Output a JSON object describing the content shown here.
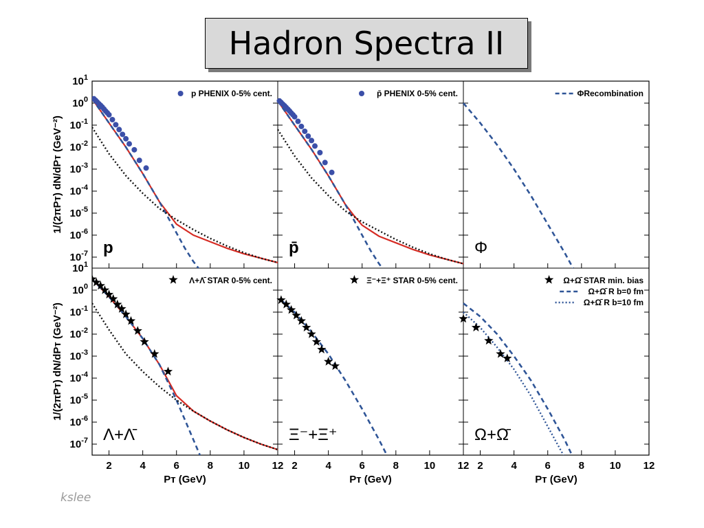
{
  "slide": {
    "title": "Hadron Spectra II",
    "footer": "kslee"
  },
  "colors": {
    "data_marker": "#3b4fa8",
    "dashed_curve": "#2f5597",
    "solid_curve": "#d62c24",
    "dotted_curve": "#111111"
  },
  "axes": {
    "ylabel": "1/(2πP_T) dN/dP_T (GeV^-2)",
    "xlabel": "P_T (GeV)",
    "x_ticks": [
      "2",
      "4",
      "6",
      "8",
      "10",
      "12"
    ],
    "y_ticks_top": [
      "10^1",
      "10^0",
      "10^-1",
      "10^-2",
      "10^-3",
      "10^-4",
      "10^-5",
      "10^-6",
      "10^-7"
    ],
    "y_ticks_bottom": [
      "10^1",
      "10^0",
      "10^-1",
      "10^-2",
      "10^-3",
      "10^-4",
      "10^-5",
      "10^-6",
      "10^-7"
    ]
  },
  "chart_data": [
    {
      "type": "scatter",
      "panel": "top-left",
      "panel_label": "p",
      "xlim": [
        1,
        12
      ],
      "ylim_log10": [
        -7.5,
        1
      ],
      "y_scale": "log",
      "legend": [
        {
          "label": "p PHENIX 0-5% cent.",
          "marker": "circle"
        }
      ],
      "series": [
        {
          "name": "p PHENIX 0-5% cent.",
          "style": "circle",
          "x": [
            1.1,
            1.2,
            1.3,
            1.4,
            1.5,
            1.6,
            1.7,
            1.8,
            1.9,
            2.0,
            2.2,
            2.4,
            2.6,
            2.8,
            3.0,
            3.2,
            3.5,
            3.8,
            4.2
          ],
          "y_log10": [
            0.2,
            0.13,
            0.05,
            -0.03,
            -0.1,
            -0.18,
            -0.27,
            -0.36,
            -0.44,
            -0.53,
            -0.75,
            -0.98,
            -1.2,
            -1.42,
            -1.62,
            -1.85,
            -2.12,
            -2.6,
            -2.95
          ]
        },
        {
          "name": "",
          "style": "solid-red",
          "x": [
            1,
            2,
            3,
            4,
            5,
            5.5,
            6,
            7,
            8,
            9,
            10,
            11,
            12
          ],
          "y_log10": [
            0.2,
            -0.9,
            -2.0,
            -3.2,
            -4.5,
            -5.0,
            -5.5,
            -6.0,
            -6.3,
            -6.6,
            -6.85,
            -7.05,
            -7.25
          ]
        },
        {
          "name": "",
          "style": "dashed-blue",
          "x": [
            1,
            2,
            3,
            4,
            5,
            5.5,
            6,
            6.5,
            7,
            7.5
          ],
          "y_log10": [
            0.2,
            -0.9,
            -2.0,
            -3.2,
            -4.5,
            -5.2,
            -5.9,
            -6.6,
            -7.2,
            -7.7
          ]
        },
        {
          "name": "",
          "style": "dotted-black",
          "x": [
            1,
            2,
            3,
            4,
            5,
            6,
            7,
            8,
            9,
            10,
            11,
            12
          ],
          "y_log10": [
            -1.1,
            -2.3,
            -3.3,
            -4.1,
            -4.8,
            -5.3,
            -5.75,
            -6.15,
            -6.5,
            -6.8,
            -7.05,
            -7.25
          ]
        }
      ]
    },
    {
      "type": "scatter",
      "panel": "top-center",
      "panel_label": "p̄",
      "xlim": [
        1,
        12
      ],
      "ylim_log10": [
        -7.5,
        1
      ],
      "y_scale": "log",
      "legend": [
        {
          "label": "p̄ PHENIX 0-5% cent.",
          "marker": "circle"
        }
      ],
      "series": [
        {
          "name": "p̄ PHENIX 0-5% cent.",
          "style": "circle",
          "x": [
            1.1,
            1.2,
            1.3,
            1.4,
            1.5,
            1.6,
            1.7,
            1.8,
            1.9,
            2.0,
            2.2,
            2.4,
            2.6,
            2.8,
            3.0,
            3.2,
            3.5,
            3.8,
            4.2
          ],
          "y_log10": [
            0.1,
            0.03,
            -0.05,
            -0.12,
            -0.2,
            -0.28,
            -0.36,
            -0.45,
            -0.53,
            -0.62,
            -0.83,
            -1.06,
            -1.28,
            -1.5,
            -1.7,
            -1.95,
            -2.25,
            -2.7,
            -3.15
          ]
        },
        {
          "name": "",
          "style": "solid-red",
          "x": [
            1,
            2,
            3,
            4,
            5,
            5.5,
            6,
            7,
            8,
            9,
            10,
            11,
            12
          ],
          "y_log10": [
            0.1,
            -1.0,
            -2.1,
            -3.3,
            -4.6,
            -5.1,
            -5.55,
            -6.05,
            -6.35,
            -6.65,
            -6.9,
            -7.1,
            -7.3
          ]
        },
        {
          "name": "",
          "style": "dashed-blue",
          "x": [
            1,
            2,
            3,
            4,
            5,
            5.5,
            6,
            6.5,
            7,
            7.5
          ],
          "y_log10": [
            0.1,
            -1.0,
            -2.1,
            -3.3,
            -4.6,
            -5.3,
            -6.0,
            -6.7,
            -7.3,
            -7.8
          ]
        },
        {
          "name": "",
          "style": "dotted-black",
          "x": [
            1,
            2,
            3,
            4,
            5,
            6,
            7,
            8,
            9,
            10,
            11,
            12
          ],
          "y_log10": [
            -1.2,
            -2.4,
            -3.4,
            -4.2,
            -4.9,
            -5.4,
            -5.8,
            -6.2,
            -6.55,
            -6.85,
            -7.1,
            -7.3
          ]
        }
      ]
    },
    {
      "type": "line",
      "panel": "top-right",
      "panel_label": "Φ",
      "xlim": [
        1,
        12
      ],
      "ylim_log10": [
        -7.5,
        1
      ],
      "y_scale": "log",
      "legend": [
        {
          "label": "ΦRecombination",
          "marker": "dashed"
        }
      ],
      "series": [
        {
          "name": "ΦRecombination",
          "style": "dashed-blue",
          "x": [
            1,
            2,
            3,
            4,
            5,
            6,
            7,
            7.5
          ],
          "y_log10": [
            0.0,
            -0.9,
            -1.9,
            -3.0,
            -4.2,
            -5.5,
            -6.8,
            -7.5
          ]
        }
      ]
    },
    {
      "type": "scatter",
      "panel": "bottom-left",
      "panel_label": "Λ+Λ̄",
      "xlim": [
        1,
        12
      ],
      "ylim_log10": [
        -7.5,
        1
      ],
      "y_scale": "log",
      "legend": [
        {
          "label": "Λ+Λ̄ STAR 0-5% cent.",
          "marker": "star"
        }
      ],
      "series": [
        {
          "name": "Λ+Λ̄ STAR 0-5% cent.",
          "style": "star",
          "x": [
            1.0,
            1.25,
            1.5,
            1.75,
            2.0,
            2.25,
            2.5,
            2.75,
            3.0,
            3.3,
            3.7,
            4.1,
            4.7,
            5.5
          ],
          "y_log10": [
            0.5,
            0.35,
            0.2,
            0.0,
            -0.2,
            -0.4,
            -0.65,
            -0.85,
            -1.1,
            -1.4,
            -1.85,
            -2.35,
            -2.9,
            -3.7
          ]
        },
        {
          "name": "",
          "style": "solid-red",
          "x": [
            1,
            2,
            3,
            4,
            5,
            5.5,
            6,
            7,
            8,
            9,
            10,
            11,
            12
          ],
          "y_log10": [
            0.5,
            -0.3,
            -1.2,
            -2.2,
            -3.4,
            -4.1,
            -4.8,
            -5.5,
            -5.95,
            -6.35,
            -6.7,
            -7.0,
            -7.25
          ]
        },
        {
          "name": "",
          "style": "dashed-blue",
          "x": [
            1,
            2,
            3,
            4,
            5,
            5.5,
            6,
            6.5,
            7,
            7.5
          ],
          "y_log10": [
            0.5,
            -0.3,
            -1.2,
            -2.2,
            -3.4,
            -4.2,
            -5.0,
            -5.9,
            -6.8,
            -7.7
          ]
        },
        {
          "name": "",
          "style": "dotted-black",
          "x": [
            1,
            2,
            3,
            4,
            5,
            6,
            7,
            8,
            9,
            10,
            11,
            12
          ],
          "y_log10": [
            -0.6,
            -1.8,
            -2.9,
            -3.7,
            -4.4,
            -5.0,
            -5.5,
            -5.95,
            -6.35,
            -6.7,
            -7.0,
            -7.25
          ]
        }
      ]
    },
    {
      "type": "scatter",
      "panel": "bottom-center",
      "panel_label": "Ξ⁻+Ξ⁺",
      "xlim": [
        1,
        12
      ],
      "ylim_log10": [
        -7.5,
        1
      ],
      "y_scale": "log",
      "legend": [
        {
          "label": "Ξ⁻+Ξ⁺ STAR 0-5% cent.",
          "marker": "star"
        }
      ],
      "series": [
        {
          "name": "Ξ⁻+Ξ⁺ STAR 0-5% cent.",
          "style": "star",
          "x": [
            1.2,
            1.5,
            1.8,
            2.1,
            2.4,
            2.7,
            3.0,
            3.3,
            3.6,
            4.0,
            4.4
          ],
          "y_log10": [
            -0.45,
            -0.65,
            -0.9,
            -1.15,
            -1.4,
            -1.7,
            -2.0,
            -2.35,
            -2.7,
            -3.25,
            -3.45
          ]
        },
        {
          "name": "",
          "style": "dashed-blue",
          "x": [
            1.2,
            2,
            3,
            4,
            5,
            6,
            7,
            7.6
          ],
          "y_log10": [
            -0.45,
            -1.0,
            -1.9,
            -2.9,
            -4.1,
            -5.4,
            -6.8,
            -7.7
          ]
        }
      ]
    },
    {
      "type": "scatter",
      "panel": "bottom-right",
      "panel_label": "Ω+Ω̄",
      "xlim": [
        1,
        12
      ],
      "ylim_log10": [
        -7.5,
        1
      ],
      "y_scale": "log",
      "legend": [
        {
          "label": "Ω+Ω̄ STAR min. bias",
          "marker": "star"
        },
        {
          "label": "Ω+Ω̄ R b=0 fm",
          "marker": "dashed"
        },
        {
          "label": "Ω+Ω̄ R b=10 fm",
          "marker": "dotted"
        }
      ],
      "series": [
        {
          "name": "Ω+Ω̄ STAR min. bias",
          "style": "star",
          "x": [
            1.0,
            1.75,
            2.5,
            3.2,
            3.6
          ],
          "y_log10": [
            -1.3,
            -1.7,
            -2.3,
            -2.9,
            -3.1
          ]
        },
        {
          "name": "Ω+Ω̄ R b=0 fm",
          "style": "dashed-blue",
          "x": [
            1,
            2,
            3,
            4,
            5,
            6,
            7,
            7.5
          ],
          "y_log10": [
            -0.6,
            -1.2,
            -2.0,
            -3.0,
            -4.1,
            -5.4,
            -6.8,
            -7.6
          ]
        },
        {
          "name": "Ω+Ω̄ R b=10 fm",
          "style": "dotted-blue",
          "x": [
            1,
            2,
            3,
            4,
            5,
            6,
            7
          ],
          "y_log10": [
            -1.0,
            -1.7,
            -2.6,
            -3.6,
            -4.8,
            -6.2,
            -7.6
          ]
        }
      ]
    }
  ]
}
